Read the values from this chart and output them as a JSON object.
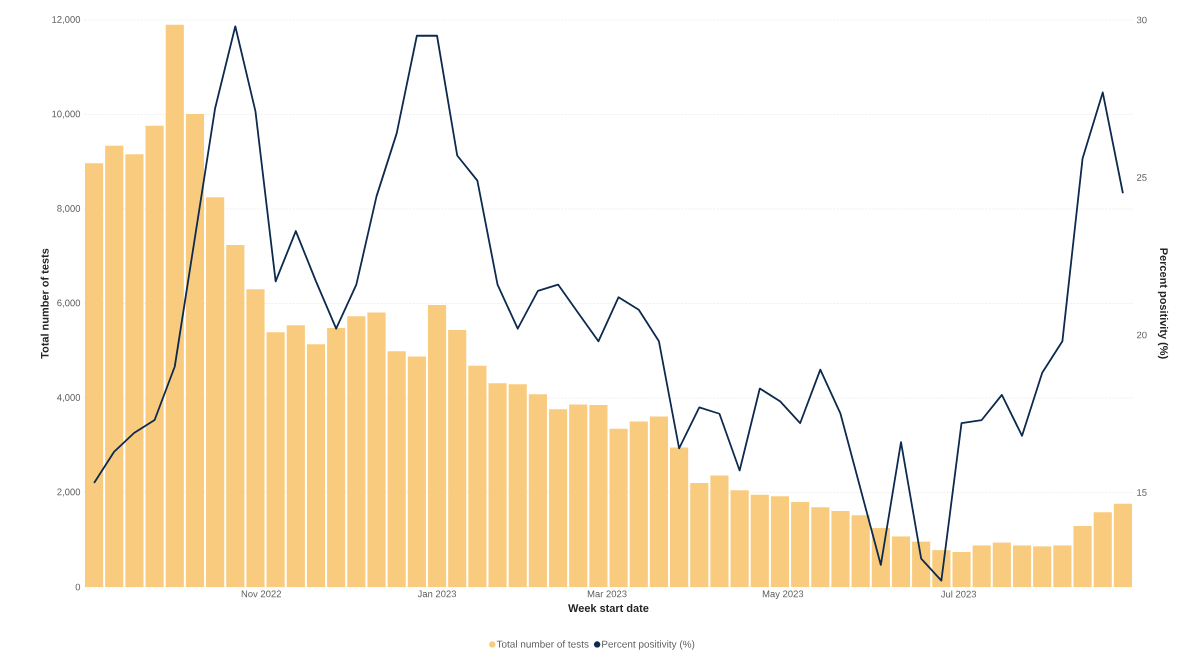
{
  "chart_data": {
    "type": "bar",
    "xlabel": "Week start date",
    "ylabel": "Total number of tests",
    "y2label": "Percent positivity (%)",
    "x": [
      "2022-09-04",
      "2022-09-11",
      "2022-09-18",
      "2022-09-25",
      "2022-10-02",
      "2022-10-09",
      "2022-10-16",
      "2022-10-23",
      "2022-10-30",
      "2022-11-06",
      "2022-11-13",
      "2022-11-20",
      "2022-11-27",
      "2022-12-04",
      "2022-12-11",
      "2022-12-18",
      "2022-12-25",
      "2023-01-01",
      "2023-01-08",
      "2023-01-15",
      "2023-01-22",
      "2023-01-29",
      "2023-02-05",
      "2023-02-12",
      "2023-02-19",
      "2023-02-26",
      "2023-03-05",
      "2023-03-12",
      "2023-03-19",
      "2023-03-26",
      "2023-04-02",
      "2023-04-09",
      "2023-04-16",
      "2023-04-23",
      "2023-04-30",
      "2023-05-07",
      "2023-05-14",
      "2023-05-21",
      "2023-05-28",
      "2023-06-04",
      "2023-06-11",
      "2023-06-18",
      "2023-06-25",
      "2023-07-02",
      "2023-07-09",
      "2023-07-16",
      "2023-07-23",
      "2023-07-30",
      "2023-08-06",
      "2023-08-13",
      "2023-08-20",
      "2023-08-27"
    ],
    "series": [
      {
        "name": "Total number of tests",
        "color": "#f9cb7e",
        "values": [
          8970,
          9340,
          9160,
          9760,
          11900,
          10010,
          8250,
          7240,
          6300,
          5390,
          5540,
          5140,
          5480,
          5730,
          5810,
          4990,
          4880,
          5970,
          5440,
          4680,
          4310,
          4290,
          4080,
          3760,
          3860,
          3850,
          3350,
          3500,
          3610,
          2950,
          2200,
          2360,
          2050,
          1950,
          1920,
          1800,
          1690,
          1610,
          1520,
          1250,
          1070,
          960,
          780,
          740,
          880,
          940,
          880,
          860,
          880,
          1290,
          1580,
          1760
        ]
      },
      {
        "name": "Percent positivity (%)",
        "type": "line",
        "axis": "y2",
        "color": "#0d2a4f",
        "values": [
          15.3,
          16.3,
          16.9,
          17.3,
          19.0,
          23.1,
          27.2,
          29.8,
          27.1,
          21.7,
          23.3,
          21.7,
          20.2,
          21.6,
          24.4,
          26.4,
          29.5,
          29.5,
          25.7,
          24.9,
          21.6,
          20.2,
          21.4,
          21.6,
          20.7,
          19.8,
          21.2,
          20.8,
          19.8,
          16.4,
          17.7,
          17.5,
          15.7,
          18.3,
          17.9,
          17.2,
          18.9,
          17.5,
          15.1,
          12.7,
          16.6,
          12.9,
          12.2,
          17.2,
          17.3,
          18.1,
          16.8,
          18.8,
          19.8,
          25.6,
          27.7,
          24.5
        ]
      }
    ],
    "xlim": [
      "2022-08-31T12:00",
      "2023-08-30T12:00"
    ],
    "xticks": [
      {
        "value": "2022-11-01",
        "label": "Nov 2022"
      },
      {
        "value": "2023-01-01",
        "label": "Jan 2023"
      },
      {
        "value": "2023-03-01",
        "label": "Mar 2023"
      },
      {
        "value": "2023-05-01",
        "label": "May 2023"
      },
      {
        "value": "2023-07-01",
        "label": "Jul 2023"
      }
    ],
    "ylim": [
      0,
      12000
    ],
    "yticks": [
      0,
      {
        "value": 2000,
        "label": "2,000"
      },
      {
        "value": 4000,
        "label": "4,000"
      },
      {
        "value": 6000,
        "label": "6,000"
      },
      {
        "value": 8000,
        "label": "8,000"
      },
      {
        "value": 10000,
        "label": "10,000"
      },
      {
        "value": 12000,
        "label": "12,000"
      }
    ],
    "y2lim": [
      12,
      30
    ],
    "y2ticks": [
      15,
      20,
      25,
      30
    ],
    "grid": "y",
    "legend": "bottom"
  }
}
